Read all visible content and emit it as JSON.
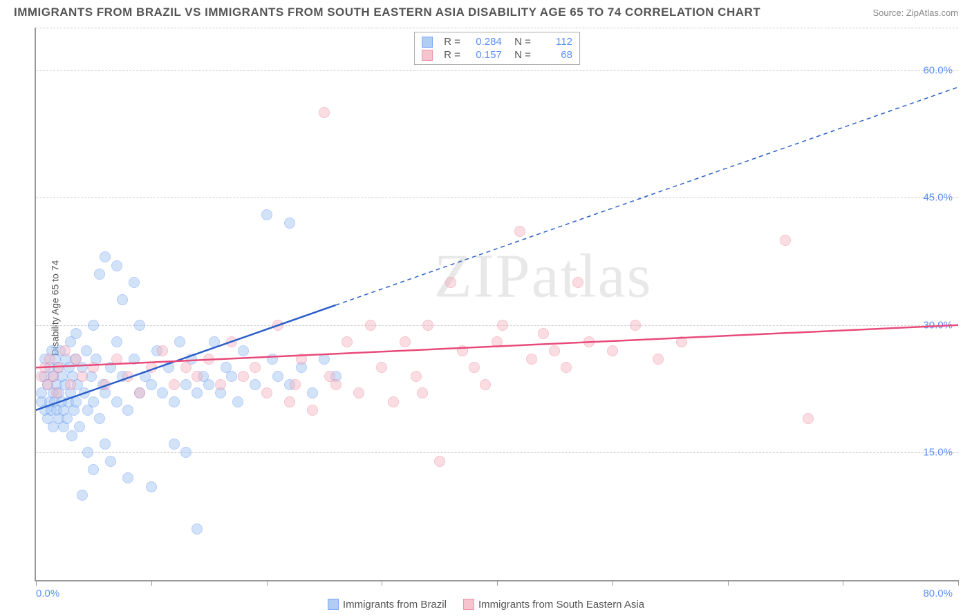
{
  "header": {
    "title": "IMMIGRANTS FROM BRAZIL VS IMMIGRANTS FROM SOUTH EASTERN ASIA DISABILITY AGE 65 TO 74 CORRELATION CHART",
    "source": "Source: ZipAtlas.com"
  },
  "chart": {
    "type": "scatter",
    "ylabel": "Disability Age 65 to 74",
    "watermark": "ZIPatlas",
    "xlim": [
      0,
      80
    ],
    "ylim": [
      0,
      65
    ],
    "x_start_label": "0.0%",
    "x_end_label": "80.0%",
    "yticks": [
      {
        "v": 15.0,
        "label": "15.0%"
      },
      {
        "v": 30.0,
        "label": "30.0%"
      },
      {
        "v": 45.0,
        "label": "45.0%"
      },
      {
        "v": 60.0,
        "label": "60.0%"
      }
    ],
    "xtick_positions": [
      0,
      10,
      20,
      30,
      40,
      50,
      60,
      70,
      80
    ],
    "grid_color": "#cccccc",
    "background_color": "#ffffff",
    "marker_radius": 8,
    "series": [
      {
        "name": "Immigrants from Brazil",
        "fill": "#9cc3f0",
        "stroke": "#5b8ff9",
        "fill_opacity": 0.45,
        "line_color": "#2b5fc9",
        "regression": {
          "x1": 0,
          "y1": 20,
          "x2": 80,
          "y2": 58,
          "solid_until_x": 26
        },
        "R": "0.284",
        "N": "112",
        "points": [
          [
            0.5,
            21
          ],
          [
            0.5,
            22
          ],
          [
            0.7,
            24
          ],
          [
            0.8,
            20
          ],
          [
            0.8,
            26
          ],
          [
            1.0,
            19
          ],
          [
            1.0,
            23
          ],
          [
            1.2,
            21
          ],
          [
            1.2,
            25
          ],
          [
            1.3,
            20
          ],
          [
            1.4,
            27
          ],
          [
            1.5,
            18
          ],
          [
            1.5,
            22
          ],
          [
            1.5,
            24
          ],
          [
            1.6,
            21
          ],
          [
            1.7,
            26
          ],
          [
            1.8,
            20
          ],
          [
            1.8,
            23
          ],
          [
            1.9,
            25
          ],
          [
            2.0,
            19
          ],
          [
            2.0,
            22
          ],
          [
            2.1,
            27
          ],
          [
            2.2,
            21
          ],
          [
            2.3,
            24
          ],
          [
            2.4,
            20
          ],
          [
            2.4,
            18
          ],
          [
            2.5,
            23
          ],
          [
            2.6,
            26
          ],
          [
            2.7,
            19
          ],
          [
            2.8,
            21
          ],
          [
            2.9,
            25
          ],
          [
            3.0,
            22
          ],
          [
            3.0,
            28
          ],
          [
            3.1,
            17
          ],
          [
            3.2,
            24
          ],
          [
            3.3,
            20
          ],
          [
            3.4,
            26
          ],
          [
            3.5,
            21
          ],
          [
            3.5,
            29
          ],
          [
            3.6,
            23
          ],
          [
            3.8,
            18
          ],
          [
            4.0,
            25
          ],
          [
            4.0,
            10
          ],
          [
            4.2,
            22
          ],
          [
            4.4,
            27
          ],
          [
            4.5,
            20
          ],
          [
            4.5,
            15
          ],
          [
            4.8,
            24
          ],
          [
            5.0,
            21
          ],
          [
            5.0,
            30
          ],
          [
            5.0,
            13
          ],
          [
            5.2,
            26
          ],
          [
            5.5,
            19
          ],
          [
            5.5,
            36
          ],
          [
            5.8,
            23
          ],
          [
            6.0,
            22
          ],
          [
            6.0,
            16
          ],
          [
            6.0,
            38
          ],
          [
            6.5,
            25
          ],
          [
            6.5,
            14
          ],
          [
            7.0,
            21
          ],
          [
            7.0,
            28
          ],
          [
            7.0,
            37
          ],
          [
            7.5,
            24
          ],
          [
            7.5,
            33
          ],
          [
            8.0,
            20
          ],
          [
            8.0,
            12
          ],
          [
            8.5,
            26
          ],
          [
            8.5,
            35
          ],
          [
            9.0,
            22
          ],
          [
            9.0,
            30
          ],
          [
            9.5,
            24
          ],
          [
            10.0,
            23
          ],
          [
            10.0,
            11
          ],
          [
            10.5,
            27
          ],
          [
            11.0,
            22
          ],
          [
            11.5,
            25
          ],
          [
            12.0,
            21
          ],
          [
            12.0,
            16
          ],
          [
            12.5,
            28
          ],
          [
            13.0,
            23
          ],
          [
            13.0,
            15
          ],
          [
            13.5,
            26
          ],
          [
            14.0,
            22
          ],
          [
            14.0,
            6
          ],
          [
            14.5,
            24
          ],
          [
            15.0,
            23
          ],
          [
            15.5,
            28
          ],
          [
            16.0,
            22
          ],
          [
            16.5,
            25
          ],
          [
            17.0,
            24
          ],
          [
            17.5,
            21
          ],
          [
            18.0,
            27
          ],
          [
            19.0,
            23
          ],
          [
            20.0,
            43
          ],
          [
            20.5,
            26
          ],
          [
            21.0,
            24
          ],
          [
            22.0,
            23
          ],
          [
            22.0,
            42
          ],
          [
            23.0,
            25
          ],
          [
            24.0,
            22
          ],
          [
            25.0,
            26
          ],
          [
            26.0,
            24
          ]
        ]
      },
      {
        "name": "Immigrants from South Eastern Asia",
        "fill": "#f5b5c3",
        "stroke": "#e87a95",
        "fill_opacity": 0.45,
        "line_color": "#e84a7a",
        "regression": {
          "x1": 0,
          "y1": 25,
          "x2": 80,
          "y2": 30,
          "solid_until_x": 80
        },
        "R": "0.157",
        "N": "68",
        "points": [
          [
            0.5,
            24
          ],
          [
            0.8,
            25
          ],
          [
            1.0,
            23
          ],
          [
            1.2,
            26
          ],
          [
            1.5,
            24
          ],
          [
            1.8,
            22
          ],
          [
            2.0,
            25
          ],
          [
            2.5,
            27
          ],
          [
            3.0,
            23
          ],
          [
            3.5,
            26
          ],
          [
            4.0,
            24
          ],
          [
            5.0,
            25
          ],
          [
            6.0,
            23
          ],
          [
            7.0,
            26
          ],
          [
            8.0,
            24
          ],
          [
            9.0,
            22
          ],
          [
            10.0,
            25
          ],
          [
            11.0,
            27
          ],
          [
            12.0,
            23
          ],
          [
            13.0,
            25
          ],
          [
            14.0,
            24
          ],
          [
            15.0,
            26
          ],
          [
            16.0,
            23
          ],
          [
            17.0,
            28
          ],
          [
            18.0,
            24
          ],
          [
            19.0,
            25
          ],
          [
            20.0,
            22
          ],
          [
            21.0,
            30
          ],
          [
            22.0,
            21
          ],
          [
            22.5,
            23
          ],
          [
            23.0,
            26
          ],
          [
            24.0,
            20
          ],
          [
            25.0,
            55
          ],
          [
            25.5,
            24
          ],
          [
            26.0,
            23
          ],
          [
            27.0,
            28
          ],
          [
            28.0,
            22
          ],
          [
            29.0,
            30
          ],
          [
            30.0,
            25
          ],
          [
            31.0,
            21
          ],
          [
            32.0,
            28
          ],
          [
            33.0,
            24
          ],
          [
            33.5,
            22
          ],
          [
            34.0,
            30
          ],
          [
            35.0,
            14
          ],
          [
            36.0,
            35
          ],
          [
            37.0,
            27
          ],
          [
            38.0,
            25
          ],
          [
            39.0,
            23
          ],
          [
            40.0,
            28
          ],
          [
            40.5,
            30
          ],
          [
            42.0,
            41
          ],
          [
            43.0,
            26
          ],
          [
            44.0,
            29
          ],
          [
            45.0,
            27
          ],
          [
            46.0,
            25
          ],
          [
            47.0,
            35
          ],
          [
            48.0,
            28
          ],
          [
            50.0,
            27
          ],
          [
            52.0,
            30
          ],
          [
            54.0,
            26
          ],
          [
            56.0,
            28
          ],
          [
            65.0,
            40
          ],
          [
            67.0,
            19
          ]
        ]
      }
    ]
  },
  "legend_bottom": [
    {
      "label": "Immigrants from Brazil",
      "fill": "#9cc3f0",
      "stroke": "#5b8ff9"
    },
    {
      "label": "Immigrants from South Eastern Asia",
      "fill": "#f5b5c3",
      "stroke": "#e87a95"
    }
  ]
}
